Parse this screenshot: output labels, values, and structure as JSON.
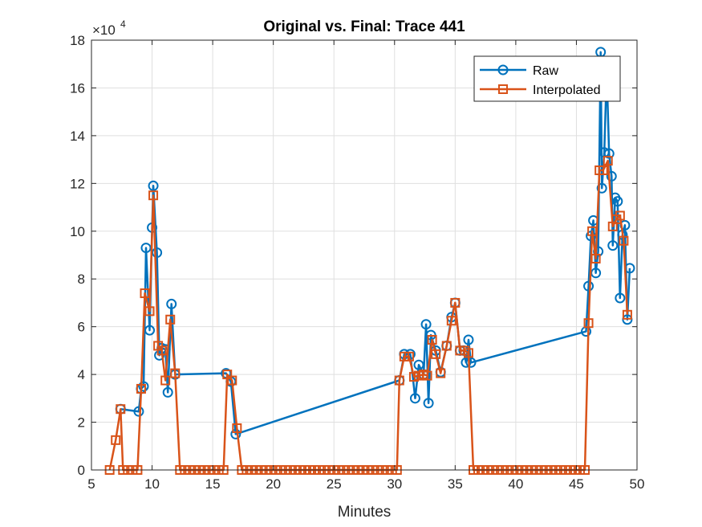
{
  "chart_data": {
    "type": "line",
    "title": "Original vs. Final: Trace 441",
    "xlabel": "Minutes",
    "ylabel": "",
    "xlim": [
      5,
      50
    ],
    "ylim": [
      0,
      180000
    ],
    "x_ticks": [
      5,
      10,
      15,
      20,
      25,
      30,
      35,
      40,
      45,
      50
    ],
    "y_ticks": [
      0,
      20000,
      40000,
      60000,
      80000,
      100000,
      120000,
      140000,
      160000,
      180000
    ],
    "y_tick_labels": [
      "0",
      "2",
      "4",
      "6",
      "8",
      "10",
      "12",
      "14",
      "16",
      "18"
    ],
    "y_exponent_label": "×10",
    "y_exponent_power": "4",
    "grid": true,
    "legend_position": "top-right",
    "series": [
      {
        "name": "Raw",
        "color": "#0072BD",
        "marker": "circle",
        "points": [
          [
            7.4,
            25500
          ],
          [
            8.9,
            24500
          ],
          [
            9.1,
            34000
          ],
          [
            9.3,
            35000
          ],
          [
            9.5,
            93000
          ],
          [
            9.8,
            58500
          ],
          [
            10.0,
            101500
          ],
          [
            10.1,
            119000
          ],
          [
            10.4,
            91000
          ],
          [
            10.6,
            48000
          ],
          [
            10.8,
            51000
          ],
          [
            11.1,
            50500
          ],
          [
            11.3,
            32500
          ],
          [
            11.6,
            69500
          ],
          [
            11.9,
            40000
          ],
          [
            16.1,
            40500
          ],
          [
            16.5,
            37000
          ],
          [
            16.9,
            15000
          ],
          [
            30.4,
            37500
          ],
          [
            30.8,
            48500
          ],
          [
            31.3,
            48500
          ],
          [
            31.7,
            30000
          ],
          [
            32.0,
            44000
          ],
          [
            32.4,
            40000
          ],
          [
            32.6,
            61000
          ],
          [
            32.8,
            28000
          ],
          [
            33.0,
            56500
          ],
          [
            33.4,
            50000
          ],
          [
            33.8,
            41000
          ],
          [
            34.3,
            52000
          ],
          [
            34.7,
            64000
          ],
          [
            35.0,
            70000
          ],
          [
            35.4,
            50000
          ],
          [
            35.7,
            50000
          ],
          [
            35.9,
            45000
          ],
          [
            36.1,
            54500
          ],
          [
            36.3,
            45000
          ],
          [
            45.8,
            58000
          ],
          [
            46.0,
            77000
          ],
          [
            46.2,
            98000
          ],
          [
            46.4,
            104500
          ],
          [
            46.6,
            82500
          ],
          [
            46.8,
            91500
          ],
          [
            47.0,
            175000
          ],
          [
            47.1,
            118000
          ],
          [
            47.3,
            133000
          ],
          [
            47.5,
            167000
          ],
          [
            47.7,
            132500
          ],
          [
            47.9,
            123000
          ],
          [
            48.0,
            94000
          ],
          [
            48.2,
            114000
          ],
          [
            48.4,
            112500
          ],
          [
            48.6,
            72000
          ],
          [
            48.8,
            98500
          ],
          [
            49.0,
            102500
          ],
          [
            49.2,
            63000
          ],
          [
            49.4,
            84500
          ]
        ]
      },
      {
        "name": "Interpolated",
        "color": "#D95319",
        "marker": "square",
        "points": [
          [
            6.5,
            0
          ],
          [
            7.0,
            12500
          ],
          [
            7.4,
            25500
          ],
          [
            7.6,
            0
          ],
          [
            8.0,
            0
          ],
          [
            8.4,
            0
          ],
          [
            8.8,
            0
          ],
          [
            9.1,
            34000
          ],
          [
            9.4,
            74000
          ],
          [
            9.8,
            66500
          ],
          [
            10.1,
            115000
          ],
          [
            10.5,
            52000
          ],
          [
            10.8,
            50000
          ],
          [
            11.1,
            37500
          ],
          [
            11.5,
            63000
          ],
          [
            11.9,
            40500
          ],
          [
            12.3,
            0
          ],
          [
            12.7,
            0
          ],
          [
            13.1,
            0
          ],
          [
            13.5,
            0
          ],
          [
            13.9,
            0
          ],
          [
            14.3,
            0
          ],
          [
            14.7,
            0
          ],
          [
            15.1,
            0
          ],
          [
            15.5,
            0
          ],
          [
            15.9,
            0
          ],
          [
            16.2,
            40000
          ],
          [
            16.6,
            37500
          ],
          [
            17.0,
            17500
          ],
          [
            17.4,
            0
          ],
          [
            17.8,
            0
          ],
          [
            18.2,
            0
          ],
          [
            18.6,
            0
          ],
          [
            19.0,
            0
          ],
          [
            19.4,
            0
          ],
          [
            19.8,
            0
          ],
          [
            20.2,
            0
          ],
          [
            20.6,
            0
          ],
          [
            21.0,
            0
          ],
          [
            21.4,
            0
          ],
          [
            21.8,
            0
          ],
          [
            22.2,
            0
          ],
          [
            22.6,
            0
          ],
          [
            23.0,
            0
          ],
          [
            23.4,
            0
          ],
          [
            23.8,
            0
          ],
          [
            24.2,
            0
          ],
          [
            24.6,
            0
          ],
          [
            25.0,
            0
          ],
          [
            25.4,
            0
          ],
          [
            25.8,
            0
          ],
          [
            26.2,
            0
          ],
          [
            26.6,
            0
          ],
          [
            27.0,
            0
          ],
          [
            27.4,
            0
          ],
          [
            27.8,
            0
          ],
          [
            28.2,
            0
          ],
          [
            28.6,
            0
          ],
          [
            29.0,
            0
          ],
          [
            29.4,
            0
          ],
          [
            29.8,
            0
          ],
          [
            30.2,
            0
          ],
          [
            30.4,
            37500
          ],
          [
            30.8,
            47500
          ],
          [
            31.2,
            47500
          ],
          [
            31.6,
            39000
          ],
          [
            32.0,
            39500
          ],
          [
            32.4,
            40000
          ],
          [
            32.7,
            39500
          ],
          [
            33.1,
            54500
          ],
          [
            33.4,
            48500
          ],
          [
            33.8,
            40500
          ],
          [
            34.3,
            52000
          ],
          [
            34.7,
            62500
          ],
          [
            35.0,
            70000
          ],
          [
            35.4,
            50000
          ],
          [
            35.8,
            50000
          ],
          [
            36.1,
            49000
          ],
          [
            36.5,
            0
          ],
          [
            36.9,
            0
          ],
          [
            37.3,
            0
          ],
          [
            37.7,
            0
          ],
          [
            38.1,
            0
          ],
          [
            38.5,
            0
          ],
          [
            38.9,
            0
          ],
          [
            39.3,
            0
          ],
          [
            39.7,
            0
          ],
          [
            40.1,
            0
          ],
          [
            40.5,
            0
          ],
          [
            40.9,
            0
          ],
          [
            41.3,
            0
          ],
          [
            41.7,
            0
          ],
          [
            42.1,
            0
          ],
          [
            42.5,
            0
          ],
          [
            42.9,
            0
          ],
          [
            43.3,
            0
          ],
          [
            43.7,
            0
          ],
          [
            44.1,
            0
          ],
          [
            44.5,
            0
          ],
          [
            44.9,
            0
          ],
          [
            45.3,
            0
          ],
          [
            45.7,
            0
          ],
          [
            46.0,
            61500
          ],
          [
            46.3,
            100000
          ],
          [
            46.6,
            88500
          ],
          [
            46.9,
            125500
          ],
          [
            47.2,
            125500
          ],
          [
            47.6,
            129500
          ],
          [
            48.0,
            102000
          ],
          [
            48.3,
            105000
          ],
          [
            48.6,
            106500
          ],
          [
            48.9,
            96000
          ],
          [
            49.2,
            65000
          ]
        ]
      }
    ]
  }
}
